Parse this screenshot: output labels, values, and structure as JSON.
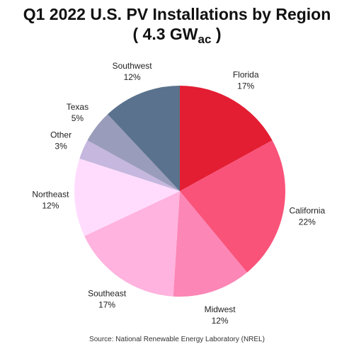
{
  "chart_data": {
    "type": "pie",
    "title_line1": "Q1 2022 U.S. PV Installations by Region",
    "title_line2_prefix": "( 4.3 GW",
    "title_line2_subscript": "ac",
    "title_line2_suffix": " )",
    "categories": [
      "Florida",
      "California",
      "Midwest",
      "Southeast",
      "Northeast",
      "Other",
      "Texas",
      "Southwest"
    ],
    "values": [
      17,
      22,
      12,
      17,
      12,
      3,
      5,
      12
    ],
    "value_labels": [
      "17%",
      "22%",
      "12%",
      "17%",
      "12%",
      "3%",
      "5%",
      "12%"
    ],
    "unit": "%",
    "colors": [
      "#e31e33",
      "#f9537a",
      "#fc86b5",
      "#ffb3de",
      "#ffdcfd",
      "#c5b7de",
      "#9a9cbb",
      "#5a728d"
    ],
    "start_angle_deg": 0,
    "direction": "clockwise",
    "source": "Source: National Renewable Energy Laboratory (NREL)"
  }
}
